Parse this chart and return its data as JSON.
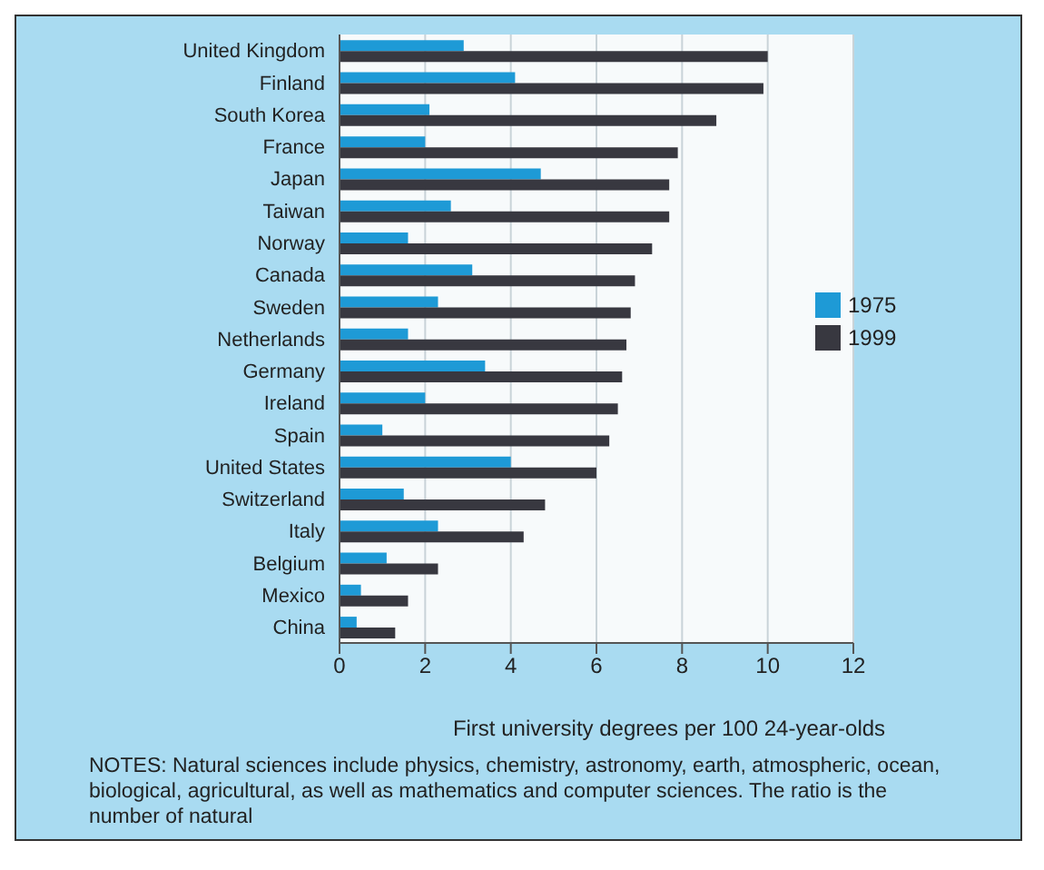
{
  "chart_data": {
    "type": "bar",
    "orientation": "horizontal",
    "xlabel": "First university degrees per 100 24-year-olds",
    "categories": [
      "United Kingdom",
      "Finland",
      "South Korea",
      "France",
      "Japan",
      "Taiwan",
      "Norway",
      "Canada",
      "Sweden",
      "Netherlands",
      "Germany",
      "Ireland",
      "Spain",
      "United States",
      "Switzerland",
      "Italy",
      "Belgium",
      "Mexico",
      "China"
    ],
    "series": [
      {
        "name": "1975",
        "color": "#1e9ad6",
        "values": [
          2.9,
          4.1,
          2.1,
          2.0,
          4.7,
          2.6,
          1.6,
          3.1,
          2.3,
          1.6,
          3.4,
          2.0,
          1.0,
          4.0,
          1.5,
          2.3,
          1.1,
          0.5,
          0.4
        ]
      },
      {
        "name": "1999",
        "color": "#383840",
        "values": [
          10.0,
          9.9,
          8.8,
          7.9,
          7.7,
          7.7,
          7.3,
          6.9,
          6.8,
          6.7,
          6.6,
          6.5,
          6.3,
          6.0,
          4.8,
          4.3,
          2.3,
          1.6,
          1.3
        ]
      }
    ],
    "xlim": [
      0,
      12
    ],
    "xticks": [
      0,
      2,
      4,
      6,
      8,
      10,
      12
    ],
    "grid": "x",
    "legend": "top right",
    "annotations": [
      "NOTES: Natural sciences include physics, chemistry, astronomy, earth, atmospheric, ocean, biological, agricultural, as well as mathematics and computer sciences. The ratio is the number of natural"
    ]
  }
}
